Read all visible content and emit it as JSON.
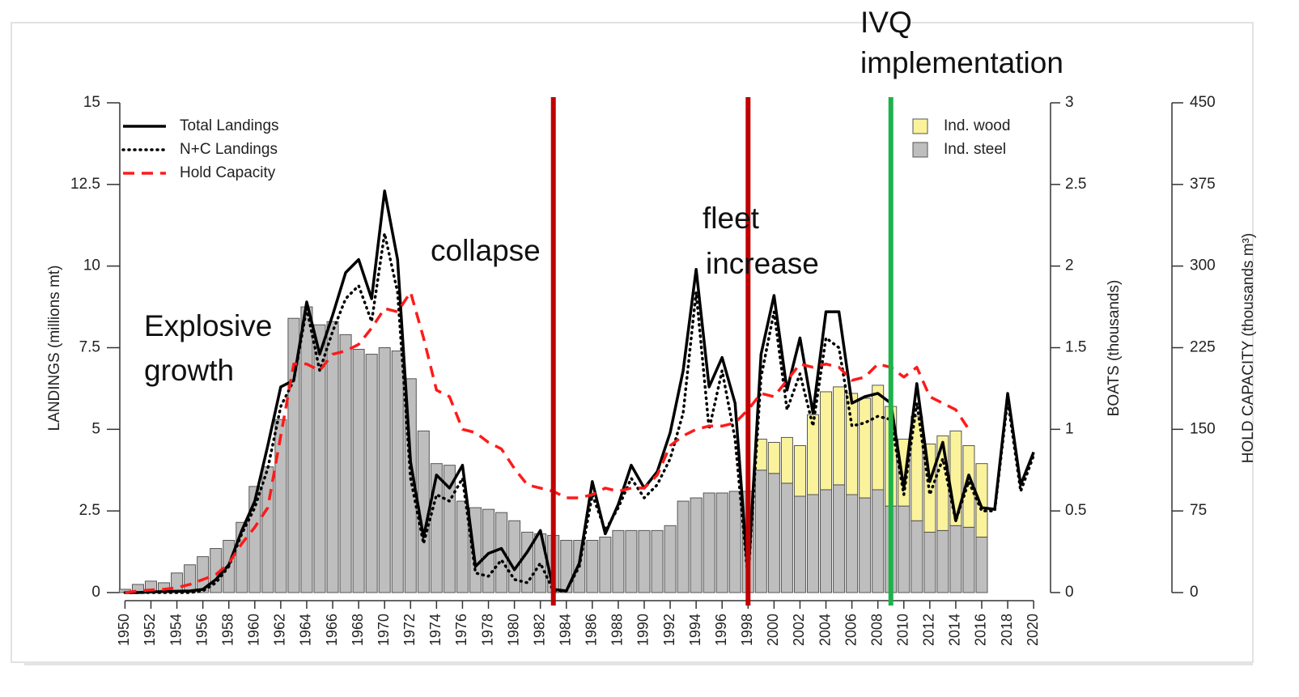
{
  "chart_data": {
    "type": "bar",
    "x": [
      1950,
      1951,
      1952,
      1953,
      1954,
      1955,
      1956,
      1957,
      1958,
      1959,
      1960,
      1961,
      1962,
      1963,
      1964,
      1965,
      1966,
      1967,
      1968,
      1969,
      1970,
      1971,
      1972,
      1973,
      1974,
      1975,
      1976,
      1977,
      1978,
      1979,
      1980,
      1981,
      1982,
      1983,
      1984,
      1985,
      1986,
      1987,
      1988,
      1989,
      1990,
      1991,
      1992,
      1993,
      1994,
      1995,
      1996,
      1997,
      1998,
      1999,
      2000,
      2001,
      2002,
      2003,
      2004,
      2005,
      2006,
      2007,
      2008,
      2009,
      2010,
      2011,
      2012,
      2013,
      2014,
      2015,
      2016,
      2017,
      2018,
      2019,
      2020
    ],
    "xlim": [
      1949.6,
      2021.3
    ],
    "xticks": [
      1950,
      1952,
      1954,
      1956,
      1958,
      1960,
      1962,
      1964,
      1966,
      1968,
      1970,
      1972,
      1974,
      1976,
      1978,
      1980,
      1982,
      1984,
      1986,
      1988,
      1990,
      1992,
      1994,
      1996,
      1998,
      2000,
      2002,
      2004,
      2006,
      2008,
      2010,
      2012,
      2014,
      2016,
      2018,
      2020
    ],
    "ylim": [
      0,
      15
    ],
    "yticks": [
      0,
      2.5,
      5,
      7.5,
      10,
      12.5,
      15
    ],
    "y2lim": [
      0,
      3
    ],
    "y2ticks": [
      0,
      0.5,
      1,
      1.5,
      2,
      2.5,
      3
    ],
    "y3lim": [
      0,
      450
    ],
    "y3ticks": [
      0,
      75,
      150,
      225,
      300,
      375,
      450
    ],
    "ylabel": "LANDINGS (millions mt)",
    "y2label": "BOATS (thousands)",
    "y3label": "HOLD CAPACITY (thousands m³)",
    "series": [
      {
        "name": "Ind. steel",
        "type": "bar",
        "axis": "y2",
        "color": "#bebebe",
        "values": [
          0.02,
          0.05,
          0.07,
          0.06,
          0.12,
          0.17,
          0.22,
          0.27,
          0.32,
          0.43,
          0.65,
          0.77,
          1.06,
          1.68,
          1.75,
          1.64,
          1.66,
          1.58,
          1.49,
          1.46,
          1.5,
          1.48,
          1.31,
          0.99,
          0.79,
          0.78,
          0.56,
          0.52,
          0.51,
          0.49,
          0.44,
          0.37,
          0.36,
          0.35,
          0.32,
          0.32,
          0.32,
          0.34,
          0.38,
          0.38,
          0.38,
          0.38,
          0.41,
          0.56,
          0.58,
          0.61,
          0.61,
          0.62,
          0.62,
          0.75,
          0.73,
          0.67,
          0.59,
          0.6,
          0.63,
          0.66,
          0.6,
          0.58,
          0.63,
          0.53,
          0.53,
          0.44,
          0.37,
          0.38,
          0.41,
          0.4,
          0.34,
          null,
          null,
          null,
          null
        ]
      },
      {
        "name": "Ind. wood",
        "type": "bar",
        "axis": "y2",
        "color": "#faf39c",
        "values": [
          null,
          null,
          null,
          null,
          null,
          null,
          null,
          null,
          null,
          null,
          null,
          null,
          null,
          null,
          null,
          null,
          null,
          null,
          null,
          null,
          null,
          null,
          null,
          null,
          null,
          null,
          null,
          null,
          null,
          null,
          null,
          null,
          null,
          null,
          null,
          null,
          null,
          null,
          null,
          null,
          null,
          null,
          null,
          null,
          null,
          null,
          null,
          null,
          null,
          0.19,
          0.19,
          0.28,
          0.31,
          0.49,
          0.6,
          0.6,
          0.62,
          0.61,
          0.64,
          0.61,
          0.41,
          0.64,
          0.54,
          0.58,
          0.58,
          0.5,
          0.45,
          null,
          null,
          null,
          null
        ]
      },
      {
        "name": "Total Landings",
        "type": "line",
        "color": "#000000",
        "style": "solid",
        "values": [
          0,
          0,
          0.02,
          0.03,
          0.04,
          0.05,
          0.1,
          0.4,
          0.85,
          1.9,
          2.8,
          4.5,
          6.3,
          6.5,
          8.9,
          7.3,
          8.5,
          9.8,
          10.2,
          9.0,
          12.3,
          10.2,
          4.0,
          1.7,
          3.6,
          3.2,
          3.9,
          0.8,
          1.2,
          1.35,
          0.7,
          1.25,
          1.9,
          0.1,
          0.05,
          0.9,
          3.4,
          1.8,
          2.7,
          3.9,
          3.2,
          3.7,
          4.9,
          6.8,
          9.9,
          6.3,
          7.2,
          5.8,
          0.5,
          7.3,
          9.1,
          6.2,
          7.8,
          5.5,
          8.6,
          8.6,
          5.8,
          6.0,
          6.1,
          5.8,
          3.2,
          6.4,
          3.4,
          4.6,
          2.2,
          3.6,
          2.6,
          2.55,
          6.1,
          3.3,
          4.3
        ]
      },
      {
        "name": "N+C Landings",
        "type": "line",
        "color": "#000000",
        "style": "dotted",
        "values": [
          0,
          0,
          0,
          0,
          0,
          0,
          0.05,
          0.3,
          0.8,
          1.8,
          2.6,
          3.8,
          5.7,
          6.5,
          8.7,
          6.8,
          8.0,
          9.0,
          9.4,
          8.3,
          11.0,
          9.2,
          3.5,
          1.5,
          3.0,
          2.8,
          3.5,
          0.6,
          0.5,
          1.0,
          0.4,
          0.3,
          0.9,
          0.05,
          0.05,
          0.8,
          3.0,
          1.9,
          2.6,
          3.5,
          2.9,
          3.3,
          4.1,
          5.5,
          9.2,
          5.0,
          6.8,
          4.7,
          0.4,
          6.6,
          8.6,
          5.6,
          6.7,
          5.1,
          7.8,
          7.5,
          5.1,
          5.2,
          5.4,
          5.3,
          3.0,
          5.8,
          3.0,
          4.1,
          2.2,
          3.4,
          2.5,
          2.5,
          5.9,
          3.1,
          4.2
        ]
      },
      {
        "name": "Hold Capacity",
        "type": "line",
        "axis": "y3",
        "color": "#ff1a1a",
        "style": "dashed",
        "values": [
          0,
          1.5,
          2.4,
          3,
          4.5,
          7.5,
          12,
          16.5,
          27,
          45,
          60,
          78,
          144,
          210,
          210,
          204,
          219,
          222,
          228,
          243,
          261,
          258,
          276,
          234,
          186,
          180,
          150,
          147,
          138,
          132,
          114,
          99,
          96,
          93,
          87,
          87,
          90,
          96,
          93,
          96,
          96,
          108,
          135,
          144,
          150,
          153,
          153,
          156,
          168,
          183,
          180,
          195,
          210,
          207,
          210,
          207,
          195,
          198,
          210,
          207,
          198,
          207,
          180,
          174,
          168,
          150,
          null,
          null,
          null,
          null,
          null
        ]
      }
    ],
    "vlines": [
      {
        "x": 1983,
        "color": "#c00000"
      },
      {
        "x": 1998,
        "color": "#c00000"
      },
      {
        "x": 2009,
        "color": "#1db24a"
      }
    ],
    "annotations": [
      {
        "lines": [
          "Explosive",
          "growth"
        ]
      },
      {
        "lines": [
          "collapse"
        ]
      },
      {
        "lines": [
          "fleet",
          "increase"
        ]
      },
      {
        "lines": [
          "IVQ",
          "implementation"
        ]
      }
    ]
  }
}
